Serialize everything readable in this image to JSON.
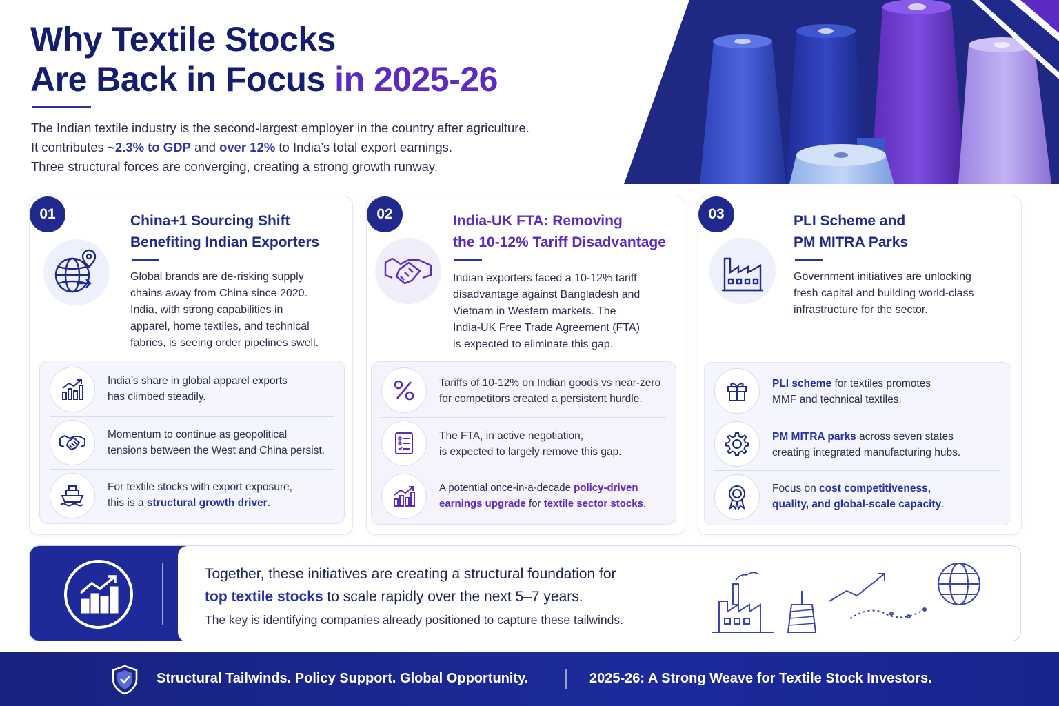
{
  "header": {
    "title_line1": "Why Textile Stocks",
    "title_line2_main": "Are Back in Focus",
    "title_line2_accent": "in 2025-26",
    "intro_line1": "The Indian textile industry is the second-largest employer in the country after agriculture.",
    "intro_line2_a": "It contributes",
    "intro_line2_hl1": "~2.3% to GDP",
    "intro_line2_b": "and",
    "intro_line2_hl2": "over 12%",
    "intro_line2_c": "to India’s total export earnings.",
    "intro_line3": "Three structural forces are converging, creating a strong growth runway."
  },
  "cards": [
    {
      "number": "01",
      "title_line1": "China+1 Sourcing Shift",
      "title_line2": "Benefiting Indian Exporters",
      "main_icon": "globe-location-icon",
      "description": [
        "Global brands are de-risking supply",
        "chains away from China since 2020.",
        "India, with strong capabilities in",
        "apparel, home textiles, and technical",
        "fabrics, is seeing order pipelines swell."
      ],
      "points": [
        {
          "icon": "growth-chart-icon",
          "line1": "India’s share in global apparel exports",
          "line2": "has climbed steadily."
        },
        {
          "icon": "handshake-icon",
          "line1": "Momentum to continue as geopolitical",
          "line2": "tensions between the West and China persist."
        },
        {
          "icon": "cargo-ship-icon",
          "line1": "For textile stocks with export exposure,",
          "line2_a": "this is a",
          "line2_hl": "structural growth driver",
          "line2_b": "."
        }
      ]
    },
    {
      "number": "02",
      "title_line1": "India-UK FTA: Removing",
      "title_line2": "the 10-12% Tariff Disadvantage",
      "main_icon": "handshake-icon",
      "description": [
        "Indian exporters faced a 10-12% tariff",
        "disadvantage against Bangladesh and",
        "Vietnam in Western markets. The",
        "India-UK Free Trade Agreement (FTA)",
        "is expected to eliminate this gap."
      ],
      "points": [
        {
          "icon": "percent-icon",
          "line1": "Tariffs of 10-12% on Indian goods vs near-zero",
          "line2": "for competitors created a persistent hurdle."
        },
        {
          "icon": "checklist-icon",
          "line1": "The FTA, in active negotiation,",
          "line2": "is expected to largely remove this gap."
        },
        {
          "icon": "growth-chart-icon",
          "line1_a": "A potential once-in-a-decade",
          "line1_hl": "policy-driven",
          "line2_hl1": "earnings upgrade",
          "line2_b": "for",
          "line2_hl2": "textile sector stocks",
          "line2_c": "."
        }
      ]
    },
    {
      "number": "03",
      "title_line1": "PLI Scheme and",
      "title_line2": "PM MITRA Parks",
      "main_icon": "factory-icon",
      "description": [
        "Government initiatives are unlocking",
        "fresh capital and building world-class",
        "infrastructure for the sector."
      ],
      "points": [
        {
          "icon": "gift-icon",
          "line1_hl": "PLI scheme",
          "line1_b": "for textiles promotes",
          "line2": "MMF and technical textiles."
        },
        {
          "icon": "gear-icon",
          "line1_hl": "PM MITRA parks",
          "line1_b": "across seven states",
          "line2": "creating integrated manufacturing hubs."
        },
        {
          "icon": "award-ribbon-icon",
          "line1_a": "Focus on",
          "line1_hl": "cost competitiveness,",
          "line2_hl": "quality, and global-scale capacity",
          "line2_b": "."
        }
      ]
    }
  ],
  "banner": {
    "icon": "growth-bars-icon",
    "line1": "Together, these initiatives are creating a structural foundation for",
    "line2_hl": "top textile stocks",
    "line2_b": "to scale rapidly over the next 5–7 years.",
    "line3": "The key is identifying companies already positioned to capture these tailwinds.",
    "illustration_icons": [
      "factory-icon",
      "thread-spool-icon",
      "trend-arrow-icon",
      "globe-icon"
    ]
  },
  "footer": {
    "icon": "shield-icon",
    "tagline_left": "Structural Tailwinds. Policy Support. Global Opportunity.",
    "tagline_right": "2025-26: A Strong Weave for Textile Stock Investors."
  },
  "colors": {
    "navy": "#1f2a8c",
    "purple": "#5b2bc4",
    "text": "#2b2f4a",
    "card_tint": "#f4f5fd"
  }
}
